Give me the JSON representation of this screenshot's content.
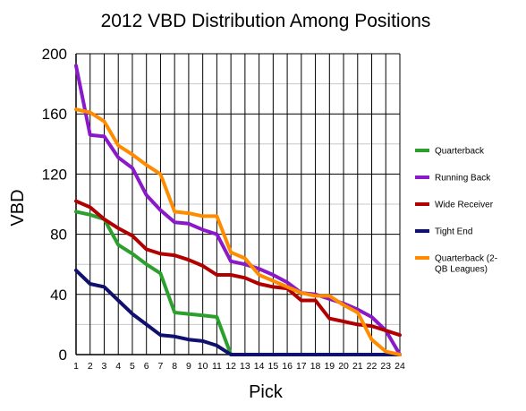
{
  "chart_data": {
    "type": "line",
    "title": "2012 VBD Distribution Among Positions",
    "xlabel": "Pick",
    "ylabel": "VBD",
    "x": [
      1,
      2,
      3,
      4,
      5,
      6,
      7,
      8,
      9,
      10,
      11,
      12,
      13,
      14,
      15,
      16,
      17,
      18,
      19,
      20,
      21,
      22,
      23,
      24
    ],
    "ylim": [
      0,
      200
    ],
    "yticks": [
      0,
      40,
      80,
      120,
      160,
      200
    ],
    "grid": true,
    "legend_position": "right",
    "series": [
      {
        "name": "Quarterback",
        "color": "#2ca02c",
        "values": [
          95,
          93,
          90,
          73,
          67,
          60,
          54,
          28,
          27,
          26,
          25,
          0,
          0,
          0,
          0,
          0,
          0,
          0,
          0,
          0,
          0,
          0,
          0,
          0
        ]
      },
      {
        "name": "Running Back",
        "color": "#8a19c9",
        "values": [
          192,
          146,
          145,
          131,
          124,
          106,
          96,
          88,
          87,
          83,
          80,
          62,
          60,
          57,
          53,
          48,
          41,
          40,
          37,
          34,
          30,
          25,
          16,
          0
        ]
      },
      {
        "name": "Wide Receiver",
        "color": "#b00000",
        "values": [
          102,
          98,
          90,
          84,
          79,
          70,
          67,
          66,
          63,
          59,
          53,
          53,
          51,
          47,
          45,
          44,
          36,
          36,
          24,
          22,
          20,
          19,
          16,
          13
        ]
      },
      {
        "name": "Tight End",
        "color": "#10106e",
        "values": [
          56,
          47,
          45,
          36,
          27,
          20,
          13,
          12,
          10,
          9,
          6,
          0,
          0,
          0,
          0,
          0,
          0,
          0,
          0,
          0,
          0,
          0,
          0,
          0
        ]
      },
      {
        "name": "Quarterback (2-QB Leagues)",
        "legend_lines": [
          "Quarterback (2-",
          "QB Leagues)"
        ],
        "color": "#ff8c00",
        "values": [
          163,
          161,
          155,
          139,
          133,
          126,
          120,
          95,
          94,
          92,
          92,
          68,
          64,
          53,
          49,
          45,
          41,
          39,
          39,
          33,
          28,
          10,
          2,
          0
        ]
      }
    ]
  }
}
